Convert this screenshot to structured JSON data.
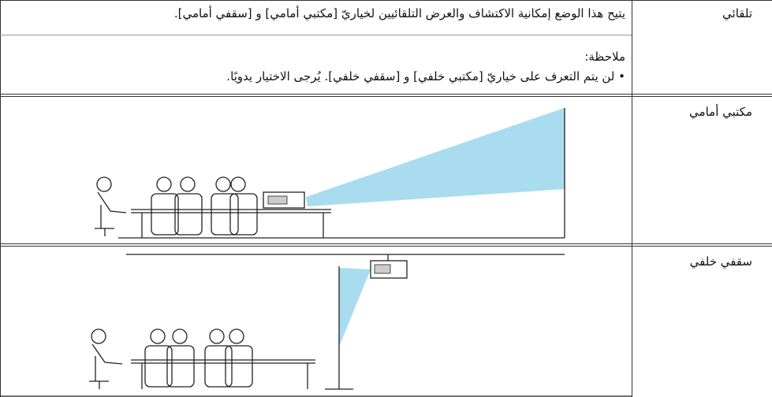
{
  "rows": [
    {
      "label": "تلقائي",
      "description": "يتيح هذا الوضع إمكانية الاكتشاف والعرض التلقائيين لخياريّ [مكتبي أمامي] و [سقفي أمامي].",
      "note_title": "ملاحظة:",
      "note_items": [
        "لن يتم التعرف على خياريّ [مكتبي خلفي] و [سقفي خلفي]. يُرجى الاختيار يدويًا."
      ]
    },
    {
      "label": "مكتبي أمامي"
    },
    {
      "label": "سقفي خلفي"
    }
  ]
}
